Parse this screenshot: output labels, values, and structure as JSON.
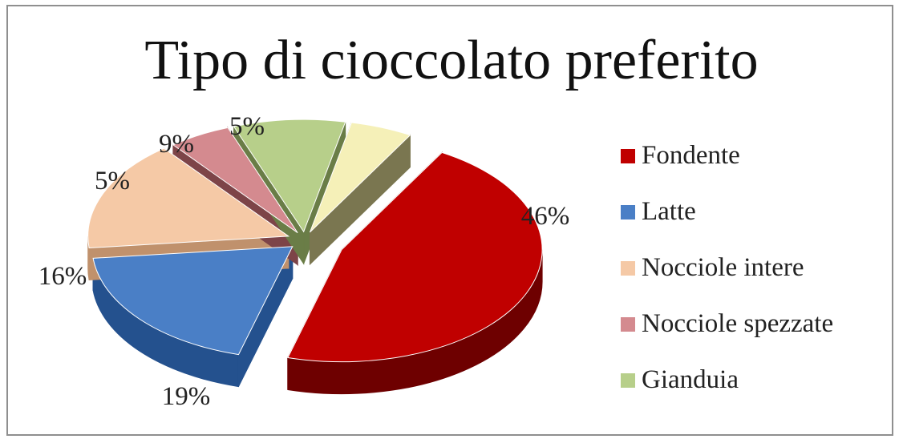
{
  "chart_data": {
    "type": "pie",
    "title": "Tipo di cioccolato preferito",
    "categories": [
      "Fondente",
      "Latte",
      "Nocciole intere",
      "Nocciole spezzate",
      "Gianduia",
      ""
    ],
    "values": [
      46,
      19,
      16,
      5,
      9,
      5
    ],
    "value_labels": [
      "46%",
      "19%",
      "16%",
      "5%",
      "9%",
      "5%"
    ],
    "colors": [
      "#c00000",
      "#4a7fc6",
      "#f5c9a6",
      "#d48a8f",
      "#b7cf8a",
      "#f5f0b8"
    ],
    "side_colors": [
      "#6e0000",
      "#24518e",
      "#c0916c",
      "#7d4448",
      "#6a7d47",
      "#7a7650"
    ],
    "legend_position": "right",
    "style": "3d-exploded"
  }
}
